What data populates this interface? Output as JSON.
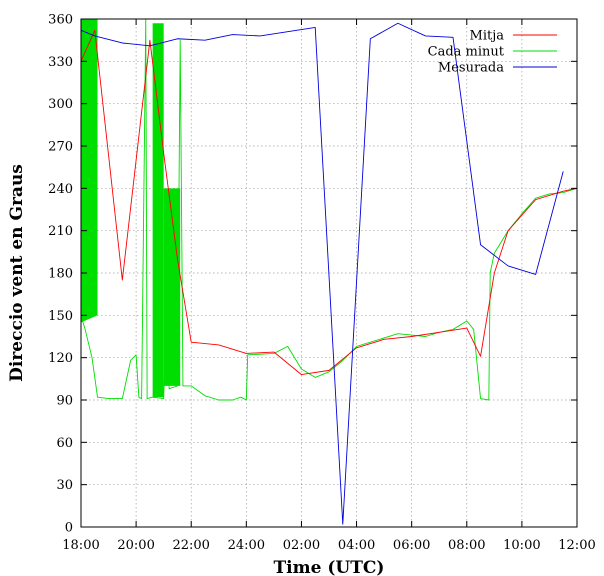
{
  "chart_data": {
    "type": "line",
    "title": "",
    "xlabel": "Time (UTC)",
    "ylabel": "Direccio vent en Graus",
    "x_tick_labels": [
      "18:00",
      "20:00",
      "22:00",
      "24:00",
      "02:00",
      "04:00",
      "06:00",
      "08:00",
      "10:00",
      "12:00"
    ],
    "y_ticks": [
      0,
      30,
      60,
      90,
      120,
      150,
      180,
      210,
      240,
      270,
      300,
      330,
      360
    ],
    "xlim_hours": [
      18,
      36
    ],
    "ylim": [
      0,
      360
    ],
    "grid": true,
    "legend_position": "top-right",
    "series": [
      {
        "name": "Mitja",
        "color": "#ff0000",
        "points": [
          [
            18.0,
            330
          ],
          [
            18.5,
            352
          ],
          [
            19.5,
            175
          ],
          [
            20.5,
            345
          ],
          [
            21.0,
            265
          ],
          [
            21.5,
            190
          ],
          [
            22.0,
            131
          ],
          [
            23.0,
            129
          ],
          [
            24.0,
            123
          ],
          [
            25.0,
            124
          ],
          [
            26.0,
            108
          ],
          [
            27.0,
            111
          ],
          [
            28.0,
            127
          ],
          [
            29.0,
            133
          ],
          [
            30.0,
            135
          ],
          [
            31.0,
            138
          ],
          [
            32.0,
            141
          ],
          [
            32.5,
            121
          ],
          [
            33.0,
            180
          ],
          [
            33.5,
            210
          ],
          [
            34.5,
            232
          ],
          [
            35.5,
            238
          ],
          [
            36.0,
            240
          ]
        ]
      },
      {
        "name": "Cada minut",
        "color": "#00dd00",
        "bands": [
          {
            "x_start": 18.0,
            "x_end": 18.6,
            "low_start": 145,
            "low_end": 150,
            "high": 360
          },
          {
            "x_start": 20.6,
            "x_end": 21.0,
            "low_start": 92,
            "low_end": 92,
            "high": 357
          },
          {
            "x_start": 21.0,
            "x_end": 21.6,
            "low_start": 100,
            "low_end": 100,
            "high": 240
          }
        ],
        "points": [
          [
            18.0,
            150
          ],
          [
            18.15,
            140
          ],
          [
            18.4,
            120
          ],
          [
            18.6,
            92
          ],
          [
            19.0,
            91
          ],
          [
            19.5,
            91
          ],
          [
            19.8,
            118
          ],
          [
            20.0,
            122
          ],
          [
            20.1,
            92
          ],
          [
            20.2,
            91
          ],
          [
            20.35,
            360
          ],
          [
            20.4,
            91
          ],
          [
            20.6,
            92
          ],
          [
            21.0,
            91
          ],
          [
            21.1,
            150
          ],
          [
            21.2,
            98
          ],
          [
            21.5,
            100
          ],
          [
            21.6,
            345
          ],
          [
            21.7,
            100
          ],
          [
            22.0,
            100
          ],
          [
            22.5,
            93
          ],
          [
            23.0,
            90
          ],
          [
            23.5,
            90
          ],
          [
            23.8,
            92
          ],
          [
            24.0,
            90
          ],
          [
            24.05,
            122
          ],
          [
            25.0,
            123
          ],
          [
            25.5,
            128
          ],
          [
            26.0,
            112
          ],
          [
            26.5,
            106
          ],
          [
            27.0,
            110
          ],
          [
            27.5,
            118
          ],
          [
            28.0,
            128
          ],
          [
            29.0,
            134
          ],
          [
            29.5,
            137
          ],
          [
            30.0,
            136
          ],
          [
            30.5,
            135
          ],
          [
            31.0,
            138
          ],
          [
            31.5,
            140
          ],
          [
            32.0,
            146
          ],
          [
            32.25,
            140
          ],
          [
            32.5,
            91
          ],
          [
            32.8,
            90
          ],
          [
            32.85,
            180
          ],
          [
            33.0,
            194
          ],
          [
            33.5,
            210
          ],
          [
            34.0,
            222
          ],
          [
            34.5,
            233
          ],
          [
            35.0,
            236
          ],
          [
            35.5,
            237
          ],
          [
            36.0,
            240
          ]
        ]
      },
      {
        "name": "Mesurada",
        "color": "#0000dd",
        "points": [
          [
            18.0,
            352
          ],
          [
            18.5,
            348
          ],
          [
            19.5,
            343
          ],
          [
            20.5,
            341
          ],
          [
            21.5,
            346
          ],
          [
            22.5,
            345
          ],
          [
            23.5,
            349
          ],
          [
            24.5,
            348
          ],
          [
            25.5,
            351
          ],
          [
            26.5,
            354
          ],
          [
            27.5,
            2
          ],
          [
            28.5,
            346
          ],
          [
            29.5,
            357
          ],
          [
            30.5,
            348
          ],
          [
            31.5,
            347
          ],
          [
            32.5,
            200
          ],
          [
            33.5,
            185
          ],
          [
            34.5,
            179
          ],
          [
            35.5,
            252
          ]
        ]
      }
    ]
  }
}
